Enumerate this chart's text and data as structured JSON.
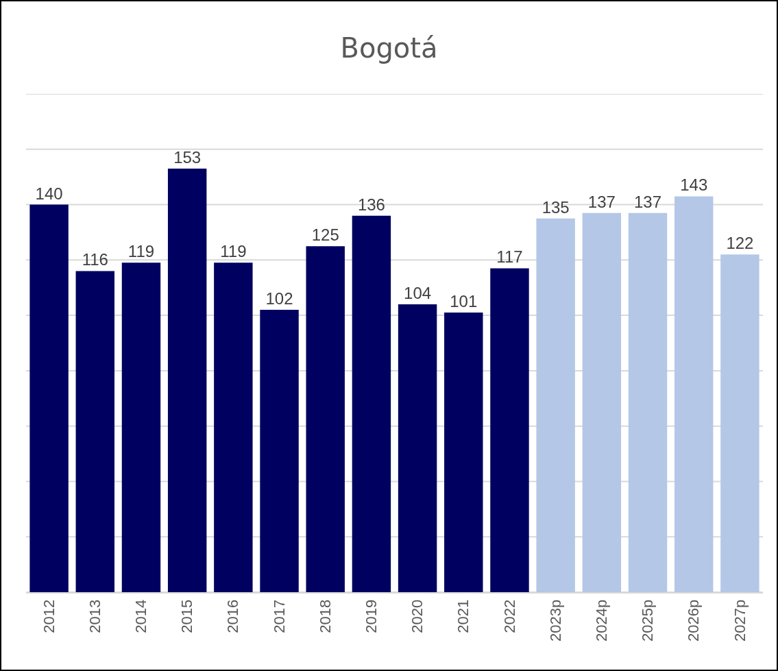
{
  "chart_data": {
    "type": "bar",
    "title": "Bogotá",
    "categories": [
      "2012",
      "2013",
      "2014",
      "2015",
      "2016",
      "2017",
      "2018",
      "2019",
      "2020",
      "2021",
      "2022",
      "2023p",
      "2024p",
      "2025p",
      "2026p",
      "2027p"
    ],
    "values": [
      140,
      116,
      119,
      153,
      119,
      102,
      125,
      136,
      104,
      101,
      117,
      135,
      137,
      137,
      143,
      122
    ],
    "colors": [
      "#000060",
      "#000060",
      "#000060",
      "#000060",
      "#000060",
      "#000060",
      "#000060",
      "#000060",
      "#000060",
      "#000060",
      "#000060",
      "#b4c7e7",
      "#b4c7e7",
      "#b4c7e7",
      "#b4c7e7",
      "#b4c7e7"
    ],
    "data_labels": true,
    "ylim": [
      0,
      180
    ],
    "yticks": [
      {
        "value": 0,
        "label": null
      },
      {
        "value": 20,
        "label": null
      },
      {
        "value": 40,
        "label": null
      },
      {
        "value": 60,
        "label": null
      },
      {
        "value": 80,
        "label": null
      },
      {
        "value": 100,
        "label": null
      },
      {
        "value": 120,
        "label": null
      },
      {
        "value": 140,
        "label": null
      },
      {
        "value": 160,
        "label": null
      },
      {
        "value": 180,
        "label": null
      }
    ],
    "grid": "y",
    "tick_labels": "x"
  }
}
